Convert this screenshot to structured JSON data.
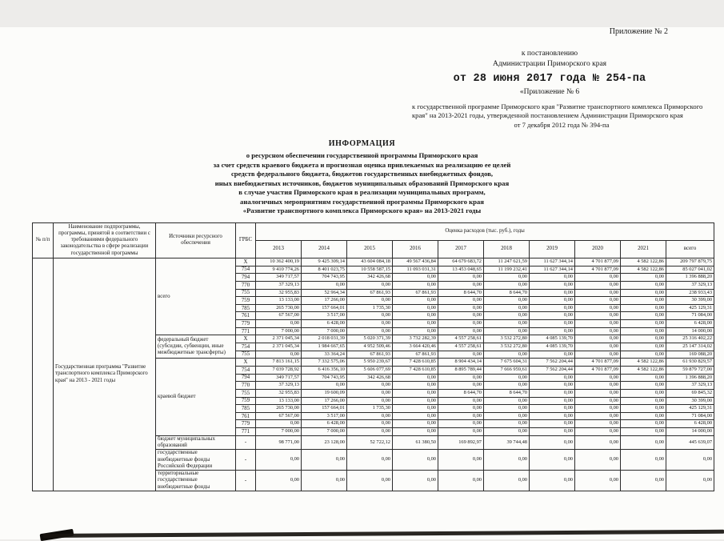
{
  "header_block": {
    "appendix_no": "Приложение № 2",
    "line1": "к постановлению",
    "line2": "Администрации Приморского края",
    "stamp_date": "от 28 июня 2017 года № 254-па",
    "appendix6": "«Приложение № 6",
    "program_ref": "к государственной программе Приморского края \"Развитие транспортного комплекса Приморского края\" на 2013-2021 годы, утвержденной постановлением Администрации Приморского края",
    "base_date": "от 7 декабря 2012 года № 394-па"
  },
  "title_block": {
    "heading": "ИНФОРМАЦИЯ",
    "lines": [
      "о ресурсном обеспечении государственной программы Приморского края",
      "за счет средств краевого бюджета и прогнозная оценка привлекаемых на реализацию ее целей",
      "средств федерального бюджета, бюджетов государственных внебюджетных фондов,",
      "иных внебюджетных источников, бюджетов муниципальных образований Приморского края",
      "в случае участия Приморского края в реализации муниципальных программ,",
      "аналогичных мероприятиям государственной программы Приморского края",
      "«Развитие транспортного комплекса Приморского края» на 2013-2021 годы"
    ]
  },
  "table": {
    "headers": {
      "num": "№ п/п",
      "name": "Наименование подпрограммы, программы, принятой в соответствии с требованиями федерального законодательства в сфере реализации государственной программы",
      "source": "Источники ресурсного обеспечения",
      "grbs": "ГРБС",
      "costs": "Оценка расходов (тыс. руб.), годы",
      "years": [
        "2013",
        "2014",
        "2015",
        "2016",
        "2017",
        "2018",
        "2019",
        "2020",
        "2021",
        "всего"
      ]
    },
    "program": {
      "num": "",
      "name": "Государственная программа \"Развитие транспортного комплекса Приморского края\" на 2013 - 2021 годы"
    },
    "sections": [
      {
        "source": "всего",
        "rows": [
          [
            "X",
            "10 362 400,19",
            "9 425 309,14",
            "43 604 084,18",
            "49 567 436,84",
            "64 679 683,72",
            "11 247 621,59",
            "11 627 344,14",
            "4 701 877,09",
            "4 582 122,86",
            "209 797 879,75"
          ],
          [
            "754",
            "9 410 774,26",
            "8 401 023,75",
            "10 558 587,15",
            "11 093 031,31",
            "13 453 048,65",
            "11 199 232,41",
            "11 627 344,14",
            "4 701 877,09",
            "4 582 122,86",
            "85 027 041,02"
          ],
          [
            "794",
            "349 717,57",
            "704 743,95",
            "342 426,68",
            "0,00",
            "0,00",
            "0,00",
            "0,00",
            "0,00",
            "0,00",
            "1 396 888,20"
          ],
          [
            "770",
            "37 329,13",
            "0,00",
            "0,00",
            "0,00",
            "0,00",
            "0,00",
            "0,00",
            "0,00",
            "0,00",
            "37 329,13"
          ],
          [
            "755",
            "32 955,83",
            "52 964,34",
            "67 861,93",
            "67 861,93",
            "8 644,70",
            "8 644,70",
            "0,00",
            "0,00",
            "0,00",
            "238 933,43"
          ],
          [
            "759",
            "13 133,00",
            "17 266,00",
            "0,00",
            "0,00",
            "0,00",
            "0,00",
            "0,00",
            "0,00",
            "0,00",
            "30 399,00"
          ],
          [
            "785",
            "265 730,00",
            "157 664,01",
            "1 735,30",
            "0,00",
            "0,00",
            "0,00",
            "0,00",
            "0,00",
            "0,00",
            "425 129,31"
          ],
          [
            "761",
            "67 567,00",
            "3 517,00",
            "0,00",
            "0,00",
            "0,00",
            "0,00",
            "0,00",
            "0,00",
            "0,00",
            "71 084,00"
          ],
          [
            "779",
            "0,00",
            "6 428,00",
            "0,00",
            "0,00",
            "0,00",
            "0,00",
            "0,00",
            "0,00",
            "0,00",
            "6 428,00"
          ],
          [
            "771",
            "7 000,00",
            "7 000,00",
            "0,00",
            "0,00",
            "0,00",
            "0,00",
            "0,00",
            "0,00",
            "0,00",
            "14 000,00"
          ]
        ]
      },
      {
        "source": "федеральный бюджет (субсидии, субвенции, иные межбюджетные трансферты)",
        "rows": [
          [
            "X",
            "2 371 045,34",
            "2 018 031,39",
            "5 020 371,39",
            "3 732 282,39",
            "4 557 258,61",
            "3 532 272,80",
            "4 085 139,70",
            "0,00",
            "0,00",
            "25 316 402,22"
          ],
          [
            "754",
            "2 371 045,34",
            "1 984 667,65",
            "4 952 509,46",
            "3 664 420,46",
            "4 557 258,61",
            "3 532 272,80",
            "4 085 139,70",
            "0,00",
            "0,00",
            "25 147 314,02"
          ],
          [
            "755",
            "0,00",
            "33 364,24",
            "67 861,93",
            "67 861,93",
            "0,00",
            "0,00",
            "0,00",
            "0,00",
            "0,00",
            "169 088,20"
          ]
        ]
      },
      {
        "source": "краевой бюджет",
        "rows": [
          [
            "X",
            "7 813 161,15",
            "7 332 575,06",
            "5 950 239,67",
            "7 428 610,85",
            "8 904 434,14",
            "7 675 604,31",
            "7 562 204,44",
            "4 701 877,09",
            "4 582 122,86",
            "61 930 829,57"
          ],
          [
            "754",
            "7 039 728,92",
            "6 416 356,10",
            "5 606 077,69",
            "7 428 610,85",
            "8 895 789,44",
            "7 666 959,61",
            "7 562 204,44",
            "4 701 877,09",
            "4 582 122,86",
            "59 879 727,00"
          ],
          [
            "794",
            "349 717,57",
            "704 743,95",
            "342 426,68",
            "0,00",
            "0,00",
            "0,00",
            "0,00",
            "0,00",
            "0,00",
            "1 396 888,20"
          ],
          [
            "770",
            "37 329,13",
            "0,00",
            "0,00",
            "0,00",
            "0,00",
            "0,00",
            "0,00",
            "0,00",
            "0,00",
            "37 329,13"
          ],
          [
            "755",
            "32 955,83",
            "19 600,09",
            "0,00",
            "0,00",
            "8 644,70",
            "8 644,70",
            "0,00",
            "0,00",
            "0,00",
            "69 845,32"
          ],
          [
            "759",
            "13 133,00",
            "17 266,00",
            "0,00",
            "0,00",
            "0,00",
            "0,00",
            "0,00",
            "0,00",
            "0,00",
            "30 399,00"
          ],
          [
            "785",
            "265 730,00",
            "157 664,01",
            "1 735,30",
            "0,00",
            "0,00",
            "0,00",
            "0,00",
            "0,00",
            "0,00",
            "425 129,31"
          ],
          [
            "761",
            "67 567,00",
            "3 517,00",
            "0,00",
            "0,00",
            "0,00",
            "0,00",
            "0,00",
            "0,00",
            "0,00",
            "71 084,00"
          ],
          [
            "779",
            "0,00",
            "6 428,00",
            "0,00",
            "0,00",
            "0,00",
            "0,00",
            "0,00",
            "0,00",
            "0,00",
            "6 428,00"
          ],
          [
            "771",
            "7 000,00",
            "7 000,00",
            "0,00",
            "0,00",
            "0,00",
            "0,00",
            "0,00",
            "0,00",
            "0,00",
            "14 000,00"
          ]
        ]
      },
      {
        "source": "бюджет муниципальных образований",
        "rows": [
          [
            "-",
            "98 771,00",
            "23 128,00",
            "52 722,12",
            "61 380,50",
            "169 892,97",
            "39 744,48",
            "0,00",
            "0,00",
            "0,00",
            "445 639,07"
          ]
        ]
      },
      {
        "source": "государственные внебюджетные фонды Российской Федерации",
        "rows": [
          [
            "-",
            "0,00",
            "0,00",
            "0,00",
            "0,00",
            "0,00",
            "0,00",
            "0,00",
            "0,00",
            "0,00",
            "0,00"
          ]
        ]
      },
      {
        "source": "территориальные государственные внебюджетные фонды",
        "rows": [
          [
            "-",
            "0,00",
            "0,00",
            "0,00",
            "0,00",
            "0,00",
            "0,00",
            "0,00",
            "0,00",
            "0,00",
            "0,00"
          ]
        ]
      }
    ]
  }
}
